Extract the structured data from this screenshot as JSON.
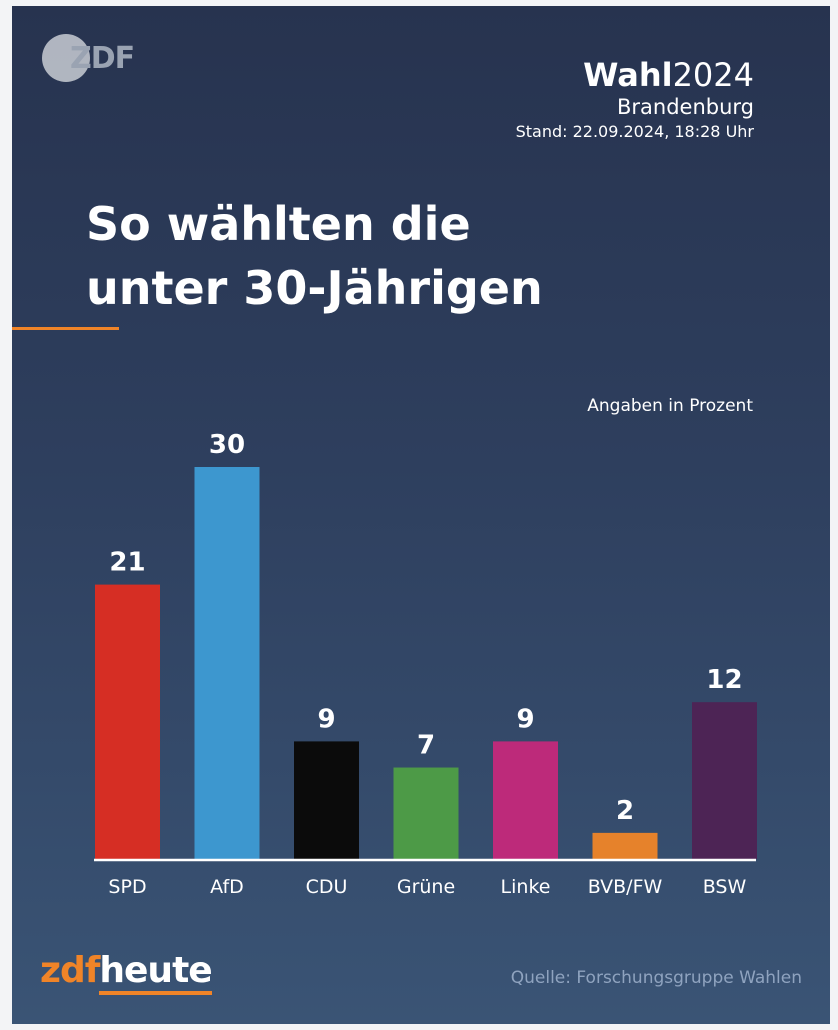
{
  "header": {
    "logo_text": "ZDF",
    "brand_bold": "Wahl",
    "brand_year": "2024",
    "region": "Brandenburg",
    "stand": "Stand: 22.09.2024, 18:28 Uhr"
  },
  "headline": {
    "line1": "So wählten die",
    "line2": "unter 30-Jährigen"
  },
  "unit_note": "Angaben in Prozent",
  "footer": {
    "logo_zdf": "zdf",
    "logo_heute": "heute",
    "source": "Quelle: Forschungsgruppe Wahlen"
  },
  "colors": {
    "accent": "#f08428"
  },
  "chart_data": {
    "type": "bar",
    "title": "So wählten die unter 30-Jährigen",
    "ylabel": "Angaben in Prozent",
    "categories": [
      "SPD",
      "AfD",
      "CDU",
      "Grüne",
      "Linke",
      "BVB/FW",
      "BSW"
    ],
    "values": [
      21,
      30,
      9,
      7,
      9,
      2,
      12
    ],
    "colors": [
      "#d62e24",
      "#3d97cf",
      "#0b0b0b",
      "#4d9a47",
      "#bd2a7a",
      "#e6822b",
      "#4d2455"
    ],
    "ylim": [
      0,
      30
    ],
    "grid": false,
    "data_labels": true
  }
}
